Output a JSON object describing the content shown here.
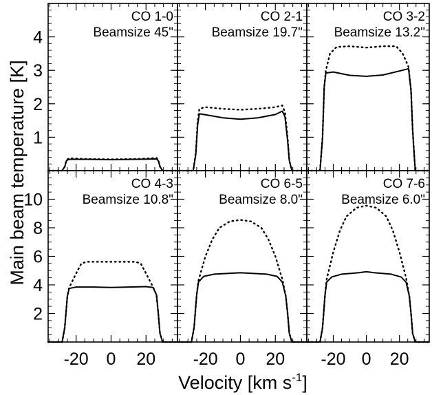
{
  "figure": {
    "ylabel": "Main beam temperature [K]",
    "xlabel": "Velocity [km s",
    "xlabel_sup": "-1",
    "xlabel_end": "]"
  },
  "chart_data": {
    "type": "line",
    "xlim": [
      -36,
      38
    ],
    "x_ticks": [
      -20,
      0,
      20
    ],
    "x_tick_labels": [
      "-20",
      "0",
      "20"
    ],
    "rows": [
      {
        "ylim": [
          0,
          5
        ],
        "y_ticks": [
          1,
          2,
          3,
          4
        ],
        "y_tick_labels": [
          "1",
          "2",
          "3",
          "4"
        ]
      },
      {
        "ylim": [
          0,
          12
        ],
        "y_ticks": [
          2,
          4,
          6,
          8,
          10
        ],
        "y_tick_labels": [
          "2",
          "4",
          "6",
          "8",
          "10"
        ]
      }
    ],
    "panels": [
      {
        "row": 0,
        "col": 0,
        "label": "CO 1-0",
        "beam": "Beamsize 45\"",
        "solid": [
          [
            -36,
            0
          ],
          [
            -28,
            0
          ],
          [
            -26.5,
            0.12
          ],
          [
            -25.5,
            0.3
          ],
          [
            -24,
            0.34
          ],
          [
            -15,
            0.34
          ],
          [
            0,
            0.33
          ],
          [
            15,
            0.34
          ],
          [
            26,
            0.35
          ],
          [
            27,
            0.3
          ],
          [
            28,
            0.12
          ],
          [
            29.5,
            0
          ],
          [
            38,
            0
          ]
        ],
        "dotted": [
          [
            -36,
            0
          ],
          [
            -28,
            0
          ],
          [
            -26.5,
            0.12
          ],
          [
            -25.5,
            0.32
          ],
          [
            -24,
            0.37
          ],
          [
            -15,
            0.35
          ],
          [
            0,
            0.34
          ],
          [
            15,
            0.35
          ],
          [
            26,
            0.38
          ],
          [
            27,
            0.32
          ],
          [
            28,
            0.12
          ],
          [
            29.5,
            0
          ],
          [
            38,
            0
          ]
        ]
      },
      {
        "row": 0,
        "col": 1,
        "label": "CO 2-1",
        "beam": "Beamsize 19.7\"",
        "solid": [
          [
            -36,
            0
          ],
          [
            -27,
            0
          ],
          [
            -25.5,
            0.5
          ],
          [
            -24.5,
            1.35
          ],
          [
            -23.5,
            1.7
          ],
          [
            -20,
            1.67
          ],
          [
            -10,
            1.58
          ],
          [
            0,
            1.54
          ],
          [
            10,
            1.58
          ],
          [
            20,
            1.68
          ],
          [
            24,
            1.78
          ],
          [
            25.5,
            1.62
          ],
          [
            27,
            0.9
          ],
          [
            28,
            0.3
          ],
          [
            29.5,
            0
          ],
          [
            38,
            0
          ]
        ],
        "dotted": [
          [
            -36,
            0
          ],
          [
            -27,
            0
          ],
          [
            -25.5,
            0.55
          ],
          [
            -24.5,
            1.45
          ],
          [
            -23.5,
            1.85
          ],
          [
            -20,
            1.9
          ],
          [
            -10,
            1.85
          ],
          [
            0,
            1.82
          ],
          [
            10,
            1.85
          ],
          [
            20,
            1.9
          ],
          [
            24,
            1.95
          ],
          [
            25.5,
            1.75
          ],
          [
            27,
            1.0
          ],
          [
            28,
            0.3
          ],
          [
            29.5,
            0
          ],
          [
            38,
            0
          ]
        ]
      },
      {
        "row": 0,
        "col": 2,
        "label": "CO 3-2",
        "beam": "Beamsize 13.2\"",
        "solid": [
          [
            -36,
            0
          ],
          [
            -28,
            0
          ],
          [
            -26.5,
            1.0
          ],
          [
            -25.5,
            2.5
          ],
          [
            -24.5,
            2.92
          ],
          [
            -20,
            2.95
          ],
          [
            -10,
            2.85
          ],
          [
            0,
            2.82
          ],
          [
            10,
            2.86
          ],
          [
            20,
            2.98
          ],
          [
            25.5,
            3.05
          ],
          [
            27,
            2.4
          ],
          [
            28,
            1.2
          ],
          [
            29.5,
            0
          ],
          [
            38,
            0
          ]
        ],
        "dotted": [
          [
            -36,
            0
          ],
          [
            -28,
            0
          ],
          [
            -26.5,
            1.0
          ],
          [
            -25.5,
            2.5
          ],
          [
            -24.5,
            3.0
          ],
          [
            -22,
            3.5
          ],
          [
            -18,
            3.7
          ],
          [
            -10,
            3.72
          ],
          [
            0,
            3.68
          ],
          [
            10,
            3.72
          ],
          [
            18,
            3.72
          ],
          [
            22,
            3.5
          ],
          [
            25.5,
            3.1
          ],
          [
            27,
            2.4
          ],
          [
            28,
            1.2
          ],
          [
            29.5,
            0
          ],
          [
            38,
            0
          ]
        ]
      },
      {
        "row": 1,
        "col": 0,
        "label": "CO 4-3",
        "beam": "Beamsize 10.8\"",
        "solid": [
          [
            -36,
            0
          ],
          [
            -28,
            0
          ],
          [
            -26.5,
            1.0
          ],
          [
            -25,
            3.2
          ],
          [
            -24,
            3.75
          ],
          [
            -20,
            3.85
          ],
          [
            -10,
            3.85
          ],
          [
            0,
            3.82
          ],
          [
            10,
            3.85
          ],
          [
            20,
            3.88
          ],
          [
            24,
            3.82
          ],
          [
            26,
            3.3
          ],
          [
            27,
            2.0
          ],
          [
            28,
            0.6
          ],
          [
            29.5,
            0
          ],
          [
            38,
            0
          ]
        ],
        "dotted": [
          [
            -36,
            0
          ],
          [
            -28,
            0
          ],
          [
            -26.5,
            1.0
          ],
          [
            -25,
            3.2
          ],
          [
            -24,
            3.8
          ],
          [
            -20,
            4.8
          ],
          [
            -17,
            5.5
          ],
          [
            -14,
            5.62
          ],
          [
            0,
            5.62
          ],
          [
            14,
            5.62
          ],
          [
            17,
            5.5
          ],
          [
            20,
            4.8
          ],
          [
            24,
            3.85
          ],
          [
            26,
            3.3
          ],
          [
            27,
            2.0
          ],
          [
            28,
            0.6
          ],
          [
            29.5,
            0
          ],
          [
            38,
            0
          ]
        ]
      },
      {
        "row": 1,
        "col": 1,
        "label": "CO 6-5",
        "beam": "Beamsize 8.0\"",
        "solid": [
          [
            -36,
            0
          ],
          [
            -28,
            0
          ],
          [
            -26.5,
            1.0
          ],
          [
            -25,
            3.3
          ],
          [
            -24,
            4.2
          ],
          [
            -21,
            4.6
          ],
          [
            -15,
            4.75
          ],
          [
            -5,
            4.82
          ],
          [
            0,
            4.85
          ],
          [
            5,
            4.82
          ],
          [
            15,
            4.75
          ],
          [
            21,
            4.6
          ],
          [
            24,
            4.2
          ],
          [
            26,
            3.2
          ],
          [
            27,
            2.0
          ],
          [
            28,
            0.6
          ],
          [
            29.5,
            0
          ],
          [
            38,
            0
          ]
        ],
        "dotted": [
          [
            -36,
            0
          ],
          [
            -28,
            0
          ],
          [
            -26.5,
            1.0
          ],
          [
            -25,
            3.3
          ],
          [
            -24,
            4.3
          ],
          [
            -20,
            6.0
          ],
          [
            -16,
            7.2
          ],
          [
            -12,
            8.0
          ],
          [
            -6,
            8.45
          ],
          [
            0,
            8.55
          ],
          [
            6,
            8.45
          ],
          [
            12,
            8.0
          ],
          [
            16,
            7.2
          ],
          [
            20,
            6.0
          ],
          [
            24,
            4.4
          ],
          [
            26,
            3.2
          ],
          [
            27,
            2.0
          ],
          [
            28,
            0.6
          ],
          [
            29.5,
            0
          ],
          [
            38,
            0
          ]
        ]
      },
      {
        "row": 1,
        "col": 2,
        "label": "CO 7-6",
        "beam": "Beamsize 6.0\"",
        "solid": [
          [
            -36,
            0
          ],
          [
            -28,
            0
          ],
          [
            -26.5,
            1.0
          ],
          [
            -25,
            3.3
          ],
          [
            -24,
            4.2
          ],
          [
            -21,
            4.55
          ],
          [
            -15,
            4.75
          ],
          [
            -5,
            4.85
          ],
          [
            0,
            4.92
          ],
          [
            5,
            4.85
          ],
          [
            15,
            4.75
          ],
          [
            21,
            4.55
          ],
          [
            24,
            4.2
          ],
          [
            26,
            3.2
          ],
          [
            27,
            2.0
          ],
          [
            28,
            0.6
          ],
          [
            29.5,
            0
          ],
          [
            38,
            0
          ]
        ],
        "dotted": [
          [
            -36,
            0
          ],
          [
            -28,
            0
          ],
          [
            -26.5,
            1.0
          ],
          [
            -25,
            3.3
          ],
          [
            -24,
            4.4
          ],
          [
            -20,
            6.3
          ],
          [
            -16,
            7.8
          ],
          [
            -12,
            8.8
          ],
          [
            -6,
            9.4
          ],
          [
            0,
            9.55
          ],
          [
            6,
            9.4
          ],
          [
            12,
            8.8
          ],
          [
            16,
            7.8
          ],
          [
            20,
            6.3
          ],
          [
            24,
            4.5
          ],
          [
            26,
            3.2
          ],
          [
            27,
            2.0
          ],
          [
            28,
            0.6
          ],
          [
            29.5,
            0
          ],
          [
            38,
            0
          ]
        ]
      }
    ]
  }
}
